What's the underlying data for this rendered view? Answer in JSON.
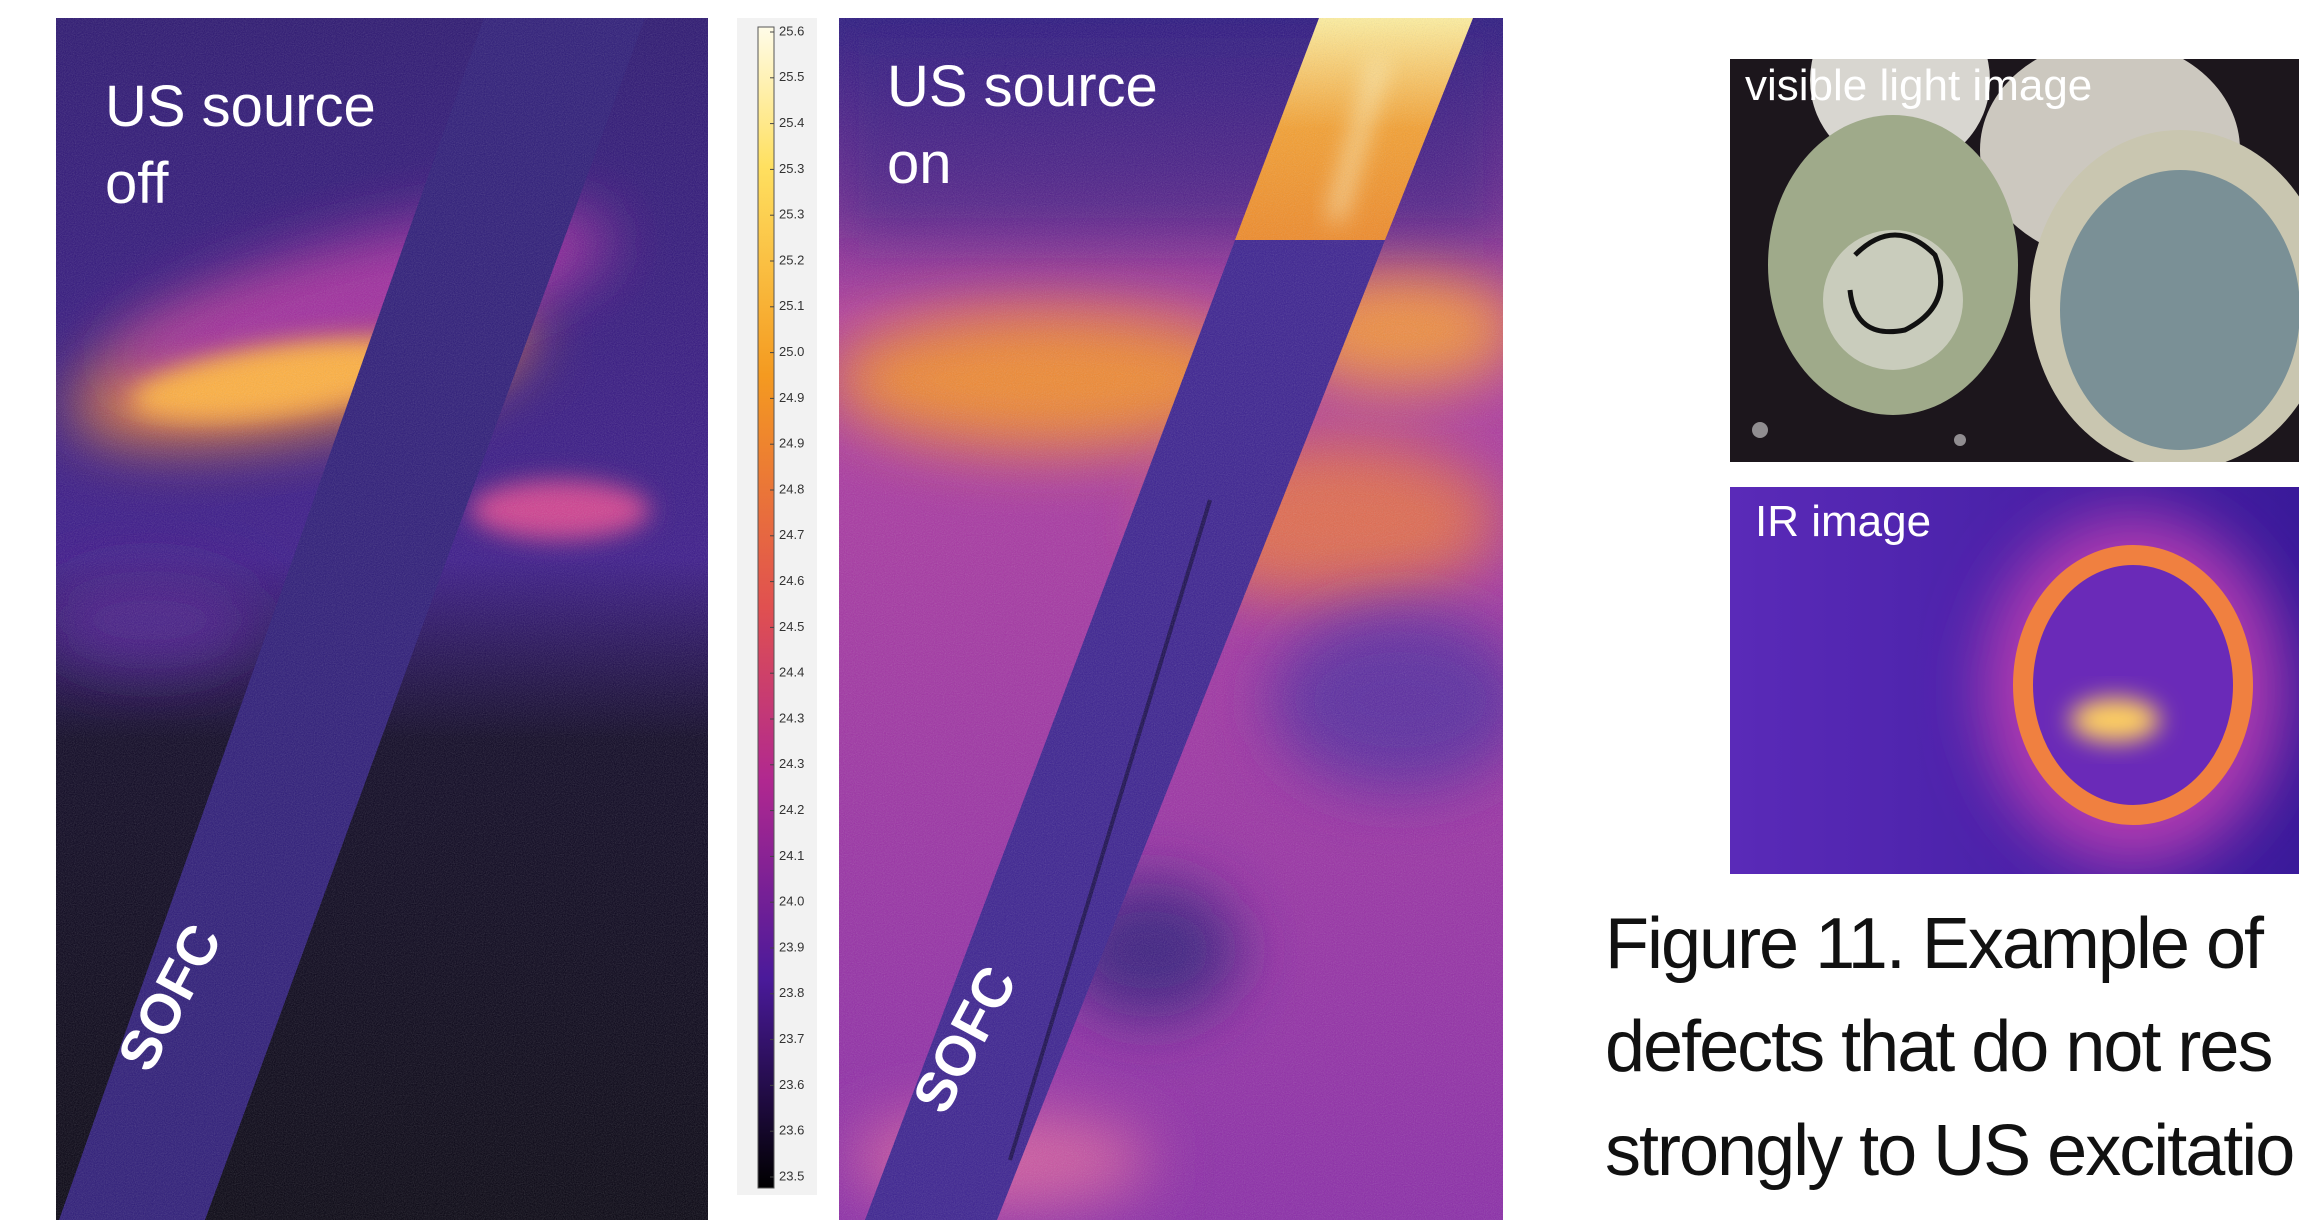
{
  "panels": [
    {
      "label_lines": [
        "US source",
        "off"
      ],
      "sample_label": "SOFC"
    },
    {
      "label_lines": [
        "US source",
        "on"
      ],
      "sample_label": "SOFC"
    }
  ],
  "colorbar": {
    "tick_labels": [
      "25.6",
      "25.5",
      "25.4",
      "25.3",
      "25.3",
      "25.2",
      "25.1",
      "25.0",
      "24.9",
      "24.9",
      "24.8",
      "24.7",
      "24.6",
      "24.5",
      "24.4",
      "24.3",
      "24.3",
      "24.2",
      "24.1",
      "24.0",
      "23.9",
      "23.8",
      "23.7",
      "23.6",
      "23.6",
      "23.5"
    ]
  },
  "photos": [
    {
      "label": "visible light image"
    },
    {
      "label": "IR image"
    }
  ],
  "caption": {
    "lines": [
      "Figure 11. Example of",
      "defects that do not res",
      "strongly to US excitatio"
    ]
  }
}
